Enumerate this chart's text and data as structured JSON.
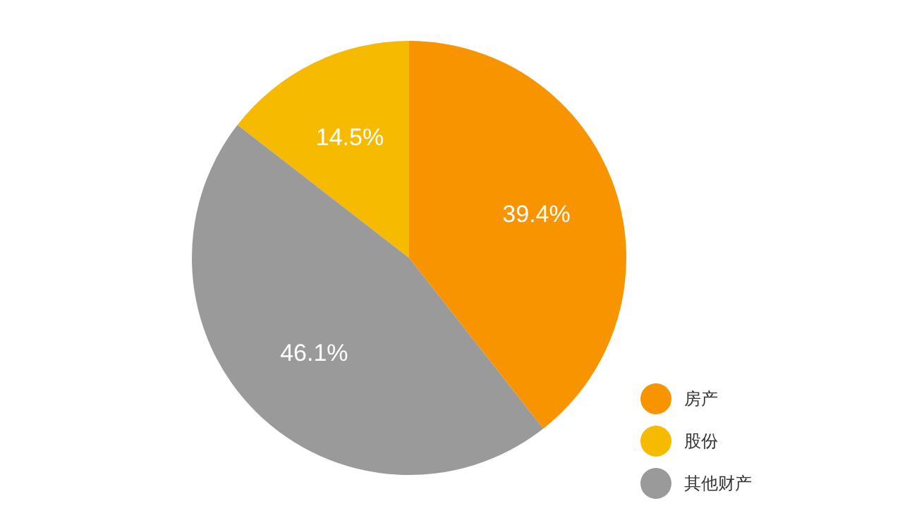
{
  "chart_data": {
    "type": "pie",
    "categories": [
      "房产",
      "股份",
      "其他财产"
    ],
    "values": [
      39.4,
      14.5,
      46.1
    ],
    "colors": [
      "#f79400",
      "#f6bb00",
      "#9a9a9a"
    ],
    "value_labels": [
      "39.4%",
      "14.5%",
      "46.1%"
    ],
    "legend": "bottom right"
  }
}
